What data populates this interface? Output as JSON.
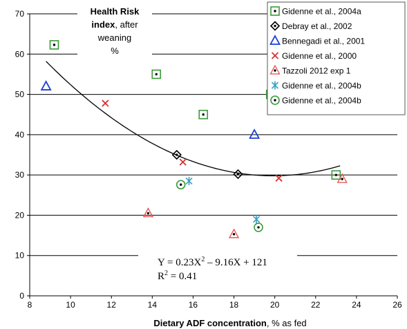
{
  "chart_data": {
    "type": "scatter",
    "title_lines": [
      {
        "bold": "Health Risk",
        "normal": ""
      },
      {
        "bold": "index",
        "normal": ", after"
      },
      {
        "bold": "",
        "normal": "weaning"
      },
      {
        "bold": "",
        "normal": "%"
      }
    ],
    "xlabel_bold": "Dietary ADF concentration",
    "xlabel_rest": ", % as fed",
    "xlim": [
      8,
      26
    ],
    "ylim": [
      0,
      70
    ],
    "xticks": [
      8,
      10,
      12,
      14,
      16,
      18,
      20,
      22,
      24,
      26
    ],
    "yticks": [
      0,
      10,
      20,
      30,
      40,
      50,
      60,
      70
    ],
    "grid": "horizontal",
    "legend_position": "top-right",
    "series": [
      {
        "name": "Gidenne et al., 2004a",
        "marker": "square",
        "color": "#3a9a3a",
        "points": [
          [
            9.2,
            62.3
          ],
          [
            14.2,
            55.0
          ],
          [
            16.5,
            45.0
          ],
          [
            19.8,
            50.0
          ],
          [
            23.0,
            30.0
          ]
        ]
      },
      {
        "name": "Debray et al., 2002",
        "marker": "diamond",
        "color": "#000000",
        "points": [
          [
            15.2,
            35.0
          ],
          [
            18.2,
            30.2
          ]
        ]
      },
      {
        "name": "Bennegadi et al., 2001",
        "marker": "triangle",
        "color": "#1a3fd6",
        "points": [
          [
            8.8,
            52.0
          ],
          [
            19.0,
            40.0
          ]
        ]
      },
      {
        "name": "Gidenne et al., 2000",
        "marker": "x",
        "color": "#d83030",
        "points": [
          [
            11.7,
            47.8
          ],
          [
            15.5,
            33.2
          ],
          [
            20.2,
            29.2
          ]
        ]
      },
      {
        "name": "Tazzoli 2012 exp 1",
        "marker": "triangle-open",
        "color": "#e84a4a",
        "points": [
          [
            13.8,
            20.5
          ],
          [
            18.0,
            15.3
          ],
          [
            23.3,
            29.0
          ]
        ]
      },
      {
        "name": "Gidenne et al., 2004b",
        "marker": "star",
        "color": "#3aa0c0",
        "points": [
          [
            15.8,
            28.5
          ],
          [
            19.1,
            19.0
          ]
        ]
      },
      {
        "name": "Gidenne et al., 2004b",
        "marker": "circle",
        "color": "#3a9a3a",
        "points": [
          [
            15.4,
            27.6
          ],
          [
            19.2,
            17.0
          ]
        ]
      }
    ],
    "trendline": {
      "type": "polynomial",
      "coefficients": [
        0.23,
        -9.16,
        121
      ],
      "x_range": [
        8.8,
        23.2
      ]
    },
    "equation_line1": "Y = 0.23X",
    "equation_sup": "2",
    "equation_line1_rest": " – 9.16X + 121",
    "r2_label": "R",
    "r2_sup": "2",
    "r2_rest": " = 0.41"
  }
}
